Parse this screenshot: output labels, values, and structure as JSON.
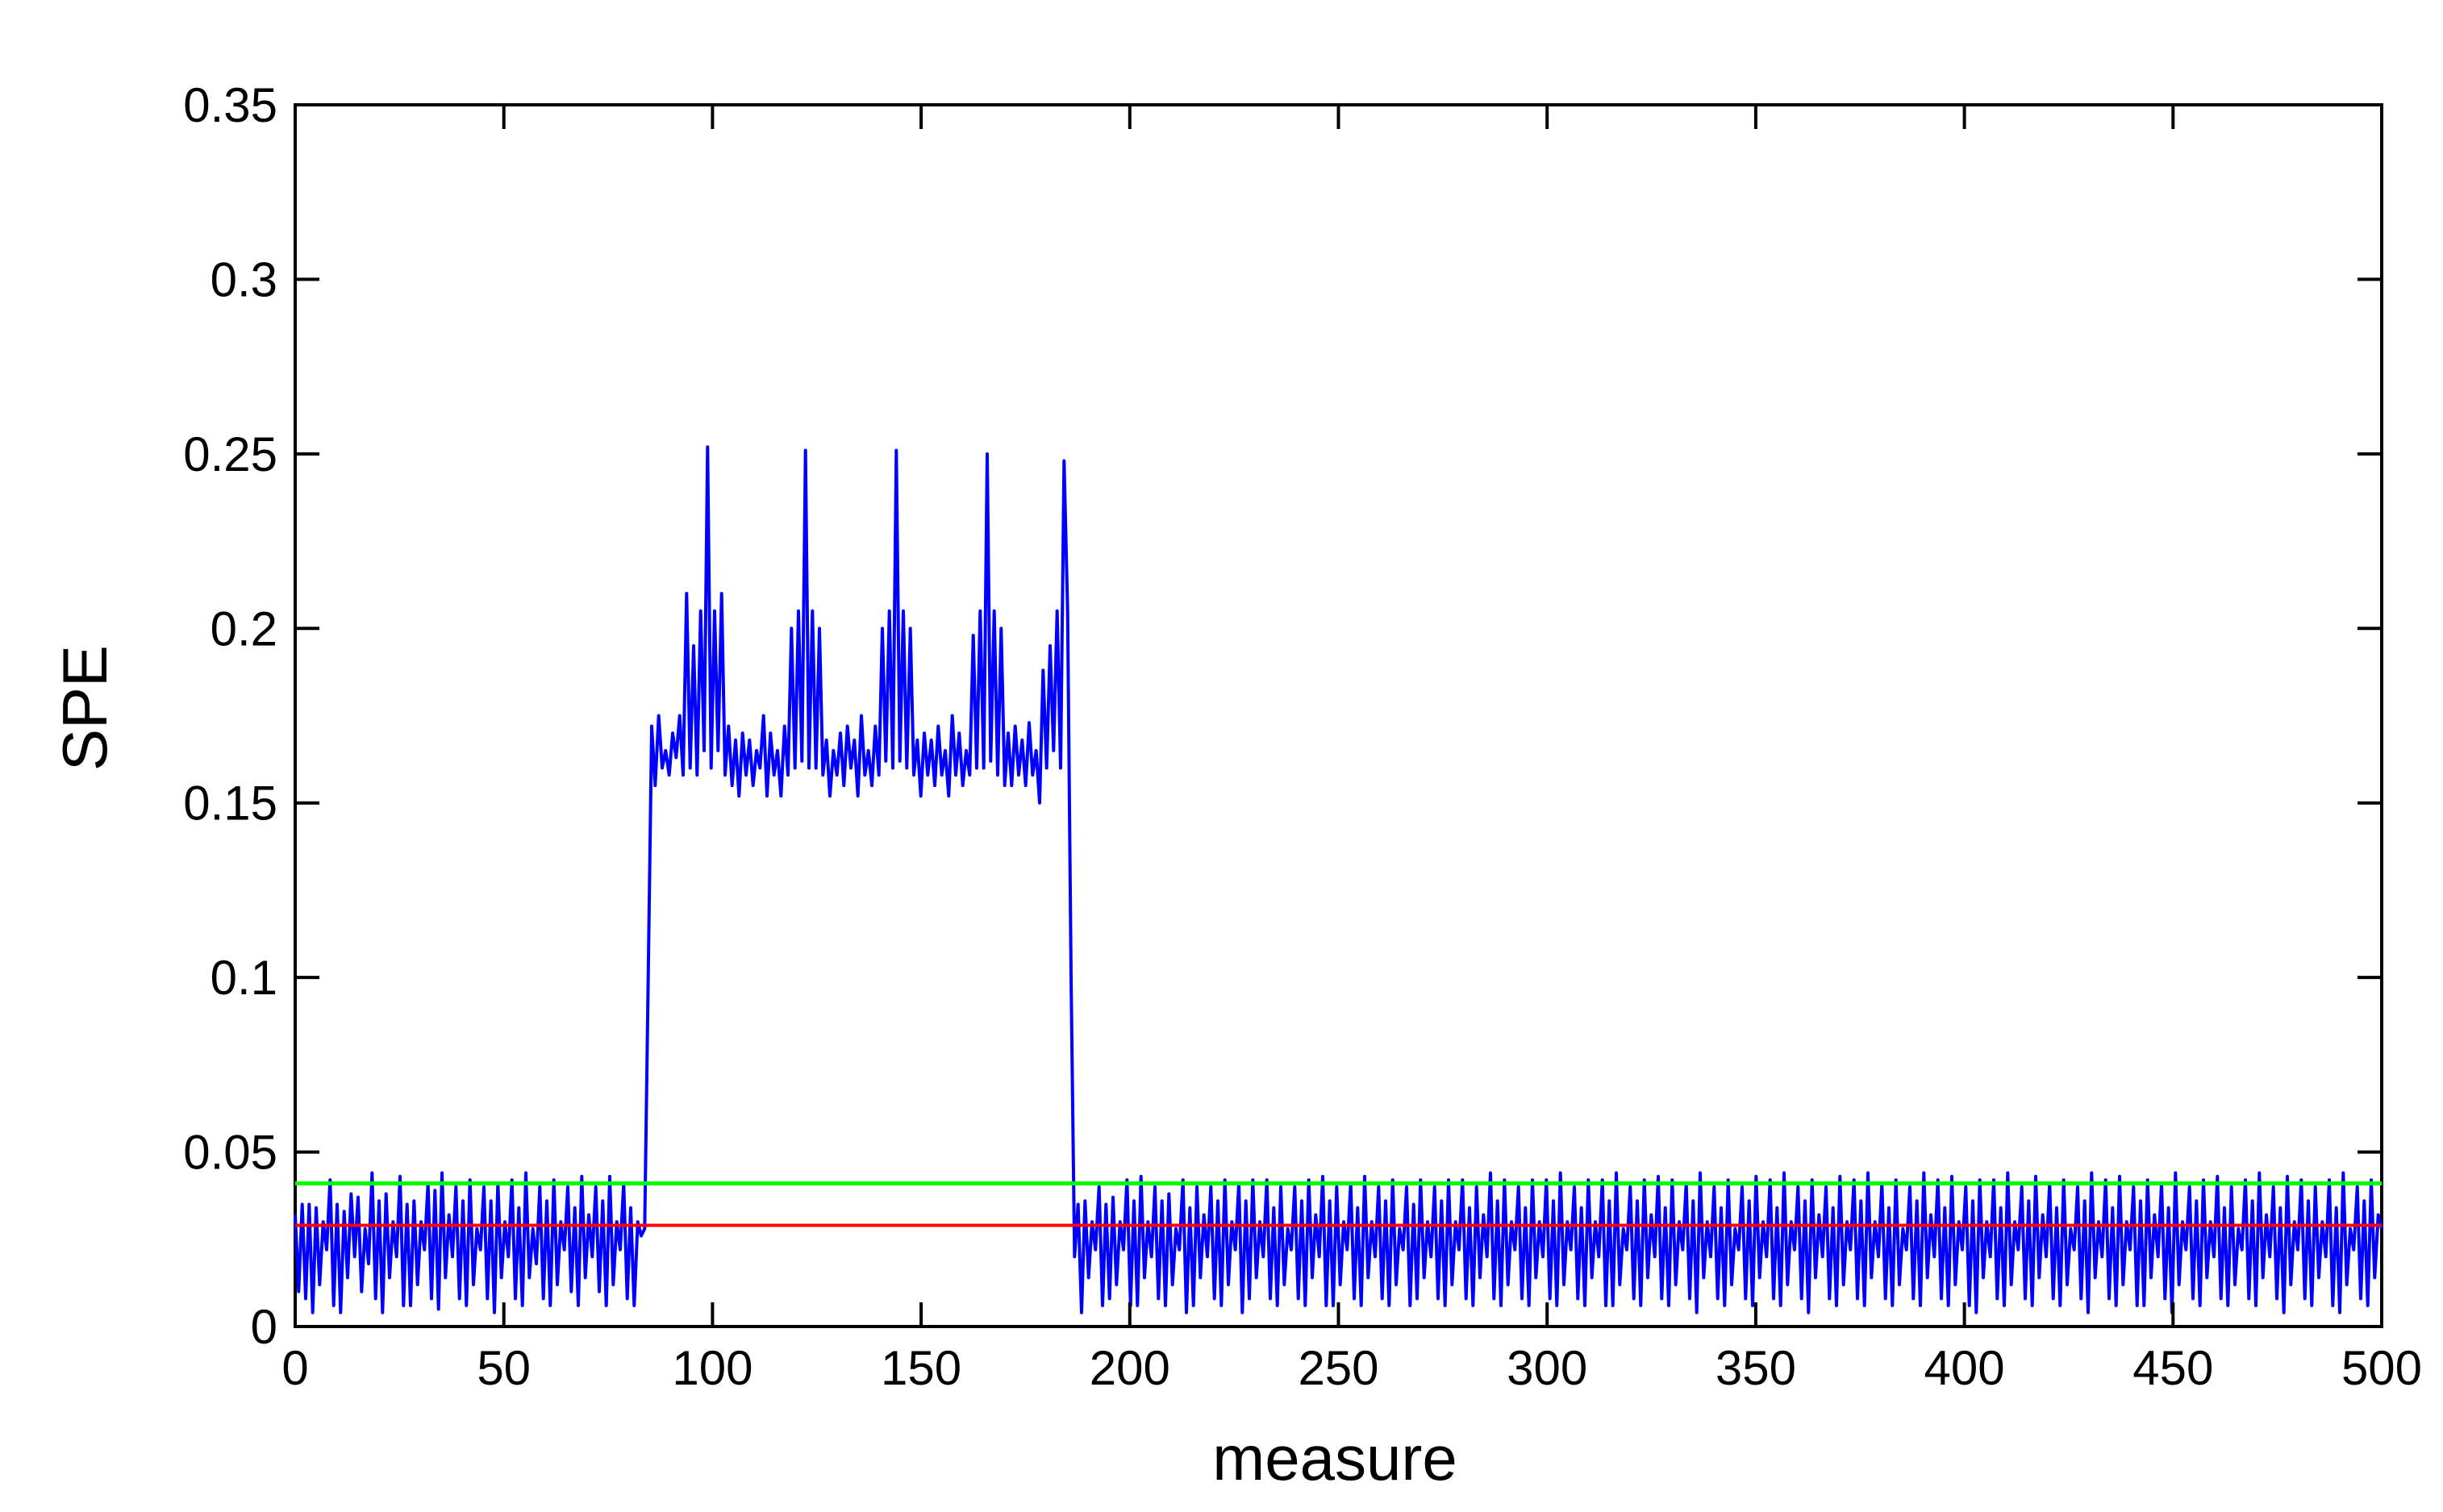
{
  "chart_data": {
    "type": "line",
    "title": "",
    "xlabel": "measure",
    "ylabel": "SPE",
    "xlim": [
      0,
      500
    ],
    "ylim": [
      0,
      0.35
    ],
    "xticks": [
      0,
      50,
      100,
      150,
      200,
      250,
      300,
      350,
      400,
      450,
      500
    ],
    "xtick_labels": [
      "0",
      "50",
      "100",
      "150",
      "200",
      "250",
      "300",
      "350",
      "400",
      "450",
      "500"
    ],
    "yticks": [
      0,
      0.05,
      0.1,
      0.15,
      0.2,
      0.25,
      0.3,
      0.35
    ],
    "ytick_labels": [
      "0",
      "0.05",
      "0.1",
      "0.15",
      "0.2",
      "0.25",
      "0.3",
      "0.35"
    ],
    "grid": false,
    "legend": "none",
    "colors": {
      "signal": "#0000ff",
      "upper_limit": "#00ff00",
      "lower_limit": "#ff0000",
      "axes": "#000000"
    },
    "series": [
      {
        "values": [
          0.032,
          0.01,
          0.035,
          0.008,
          0.035,
          0.004,
          0.034,
          0.012,
          0.03,
          0.022,
          0.042,
          0.006,
          0.035,
          0.004,
          0.033,
          0.014,
          0.038,
          0.02,
          0.037,
          0.01,
          0.028,
          0.018,
          0.044,
          0.008,
          0.036,
          0.004,
          0.038,
          0.014,
          0.03,
          0.02,
          0.043,
          0.006,
          0.035,
          0.006,
          0.036,
          0.012,
          0.03,
          0.022,
          0.041,
          0.008,
          0.039,
          0.005,
          0.044,
          0.014,
          0.032,
          0.02,
          0.04,
          0.008,
          0.036,
          0.006,
          0.042,
          0.012,
          0.028,
          0.022,
          0.04,
          0.008,
          0.036,
          0.004,
          0.041,
          0.014,
          0.03,
          0.02,
          0.042,
          0.008,
          0.034,
          0.006,
          0.044,
          0.014,
          0.028,
          0.018,
          0.04,
          0.008,
          0.036,
          0.006,
          0.042,
          0.012,
          0.03,
          0.022,
          0.04,
          0.01,
          0.034,
          0.006,
          0.043,
          0.014,
          0.032,
          0.02,
          0.04,
          0.01,
          0.036,
          0.006,
          0.043,
          0.012,
          0.03,
          0.022,
          0.041,
          0.008,
          0.034,
          0.006,
          0.03,
          0.026,
          0.028,
          0.1,
          0.172,
          0.155,
          0.175,
          0.16,
          0.165,
          0.158,
          0.17,
          0.163,
          0.175,
          0.158,
          0.21,
          0.16,
          0.195,
          0.158,
          0.205,
          0.165,
          0.252,
          0.16,
          0.205,
          0.165,
          0.21,
          0.158,
          0.172,
          0.155,
          0.168,
          0.152,
          0.17,
          0.158,
          0.168,
          0.155,
          0.165,
          0.16,
          0.175,
          0.152,
          0.17,
          0.158,
          0.165,
          0.152,
          0.172,
          0.158,
          0.2,
          0.16,
          0.205,
          0.162,
          0.251,
          0.16,
          0.205,
          0.16,
          0.2,
          0.158,
          0.168,
          0.152,
          0.165,
          0.158,
          0.17,
          0.155,
          0.172,
          0.16,
          0.168,
          0.152,
          0.175,
          0.158,
          0.165,
          0.155,
          0.172,
          0.158,
          0.2,
          0.162,
          0.205,
          0.16,
          0.251,
          0.162,
          0.205,
          0.16,
          0.2,
          0.158,
          0.168,
          0.152,
          0.17,
          0.158,
          0.168,
          0.155,
          0.172,
          0.158,
          0.165,
          0.152,
          0.175,
          0.158,
          0.17,
          0.155,
          0.165,
          0.158,
          0.198,
          0.16,
          0.205,
          0.16,
          0.25,
          0.162,
          0.205,
          0.158,
          0.2,
          0.155,
          0.17,
          0.155,
          0.172,
          0.158,
          0.168,
          0.155,
          0.173,
          0.158,
          0.165,
          0.15,
          0.188,
          0.16,
          0.195,
          0.165,
          0.205,
          0.16,
          0.248,
          0.205,
          0.1,
          0.02,
          0.035,
          0.004,
          0.036,
          0.014,
          0.03,
          0.022,
          0.04,
          0.006,
          0.035,
          0.008,
          0.037,
          0.012,
          0.03,
          0.022,
          0.042,
          0.006,
          0.036,
          0.006,
          0.043,
          0.014,
          0.03,
          0.02,
          0.04,
          0.008,
          0.036,
          0.006,
          0.038,
          0.012,
          0.028,
          0.022,
          0.042,
          0.004,
          0.034,
          0.006,
          0.04,
          0.014,
          0.032,
          0.02,
          0.04,
          0.008,
          0.036,
          0.006,
          0.042,
          0.012,
          0.03,
          0.022,
          0.041,
          0.004,
          0.036,
          0.008,
          0.042,
          0.014,
          0.03,
          0.02,
          0.042,
          0.008,
          0.034,
          0.006,
          0.04,
          0.012,
          0.028,
          0.022,
          0.04,
          0.008,
          0.036,
          0.006,
          0.042,
          0.014,
          0.032,
          0.02,
          0.043,
          0.006,
          0.036,
          0.006,
          0.04,
          0.012,
          0.03,
          0.022,
          0.041,
          0.008,
          0.034,
          0.006,
          0.043,
          0.014,
          0.03,
          0.02,
          0.04,
          0.008,
          0.036,
          0.006,
          0.042,
          0.012,
          0.028,
          0.022,
          0.04,
          0.006,
          0.035,
          0.008,
          0.042,
          0.014,
          0.03,
          0.02,
          0.04,
          0.008,
          0.036,
          0.006,
          0.042,
          0.012,
          0.03,
          0.022,
          0.042,
          0.008,
          0.034,
          0.006,
          0.04,
          0.014,
          0.032,
          0.02,
          0.044,
          0.008,
          0.036,
          0.006,
          0.042,
          0.012,
          0.03,
          0.022,
          0.04,
          0.008,
          0.034,
          0.006,
          0.042,
          0.014,
          0.03,
          0.02,
          0.042,
          0.008,
          0.036,
          0.006,
          0.044,
          0.012,
          0.03,
          0.022,
          0.04,
          0.008,
          0.034,
          0.006,
          0.042,
          0.014,
          0.03,
          0.02,
          0.042,
          0.006,
          0.036,
          0.006,
          0.044,
          0.012,
          0.028,
          0.022,
          0.04,
          0.008,
          0.036,
          0.006,
          0.042,
          0.014,
          0.032,
          0.02,
          0.043,
          0.008,
          0.034,
          0.006,
          0.042,
          0.012,
          0.03,
          0.022,
          0.041,
          0.008,
          0.036,
          0.004,
          0.044,
          0.014,
          0.03,
          0.02,
          0.04,
          0.008,
          0.034,
          0.006,
          0.042,
          0.012,
          0.028,
          0.022,
          0.04,
          0.008,
          0.036,
          0.006,
          0.043,
          0.014,
          0.03,
          0.02,
          0.042,
          0.008,
          0.034,
          0.006,
          0.044,
          0.012,
          0.03,
          0.022,
          0.04,
          0.008,
          0.036,
          0.004,
          0.042,
          0.014,
          0.032,
          0.02,
          0.04,
          0.008,
          0.034,
          0.006,
          0.043,
          0.012,
          0.03,
          0.022,
          0.042,
          0.008,
          0.036,
          0.006,
          0.044,
          0.014,
          0.03,
          0.02,
          0.041,
          0.008,
          0.034,
          0.006,
          0.042,
          0.012,
          0.028,
          0.022,
          0.04,
          0.008,
          0.036,
          0.006,
          0.044,
          0.014,
          0.032,
          0.02,
          0.042,
          0.008,
          0.034,
          0.006,
          0.043,
          0.012,
          0.03,
          0.022,
          0.04,
          0.006,
          0.036,
          0.004,
          0.042,
          0.014,
          0.03,
          0.02,
          0.042,
          0.008,
          0.034,
          0.006,
          0.044,
          0.012,
          0.03,
          0.022,
          0.04,
          0.008,
          0.036,
          0.006,
          0.043,
          0.014,
          0.032,
          0.02,
          0.041,
          0.008,
          0.034,
          0.006,
          0.042,
          0.012,
          0.028,
          0.022,
          0.04,
          0.008,
          0.036,
          0.004,
          0.044,
          0.014,
          0.03,
          0.02,
          0.042,
          0.008,
          0.034,
          0.006,
          0.043,
          0.012,
          0.03,
          0.022,
          0.04,
          0.006,
          0.036,
          0.006,
          0.042,
          0.014,
          0.032,
          0.02,
          0.041,
          0.008,
          0.034,
          0.004,
          0.044,
          0.012,
          0.03,
          0.022,
          0.04,
          0.008,
          0.036,
          0.006,
          0.042,
          0.014,
          0.03,
          0.02,
          0.043,
          0.008,
          0.034,
          0.006,
          0.04,
          0.012,
          0.028,
          0.022,
          0.042,
          0.008,
          0.036,
          0.006,
          0.044,
          0.014,
          0.032,
          0.02,
          0.04,
          0.008,
          0.034,
          0.004,
          0.043,
          0.012,
          0.03,
          0.022,
          0.042,
          0.008,
          0.036,
          0.006,
          0.04,
          0.014,
          0.03,
          0.02,
          0.042,
          0.006,
          0.034,
          0.004,
          0.044,
          0.012,
          0.028,
          0.022,
          0.04,
          0.008,
          0.036,
          0.006,
          0.042,
          0.014,
          0.032,
          0.028
        ]
      },
      {
        "values": [
          0.041,
          0.041
        ]
      },
      {
        "values": [
          0.029,
          0.029
        ]
      }
    ]
  }
}
